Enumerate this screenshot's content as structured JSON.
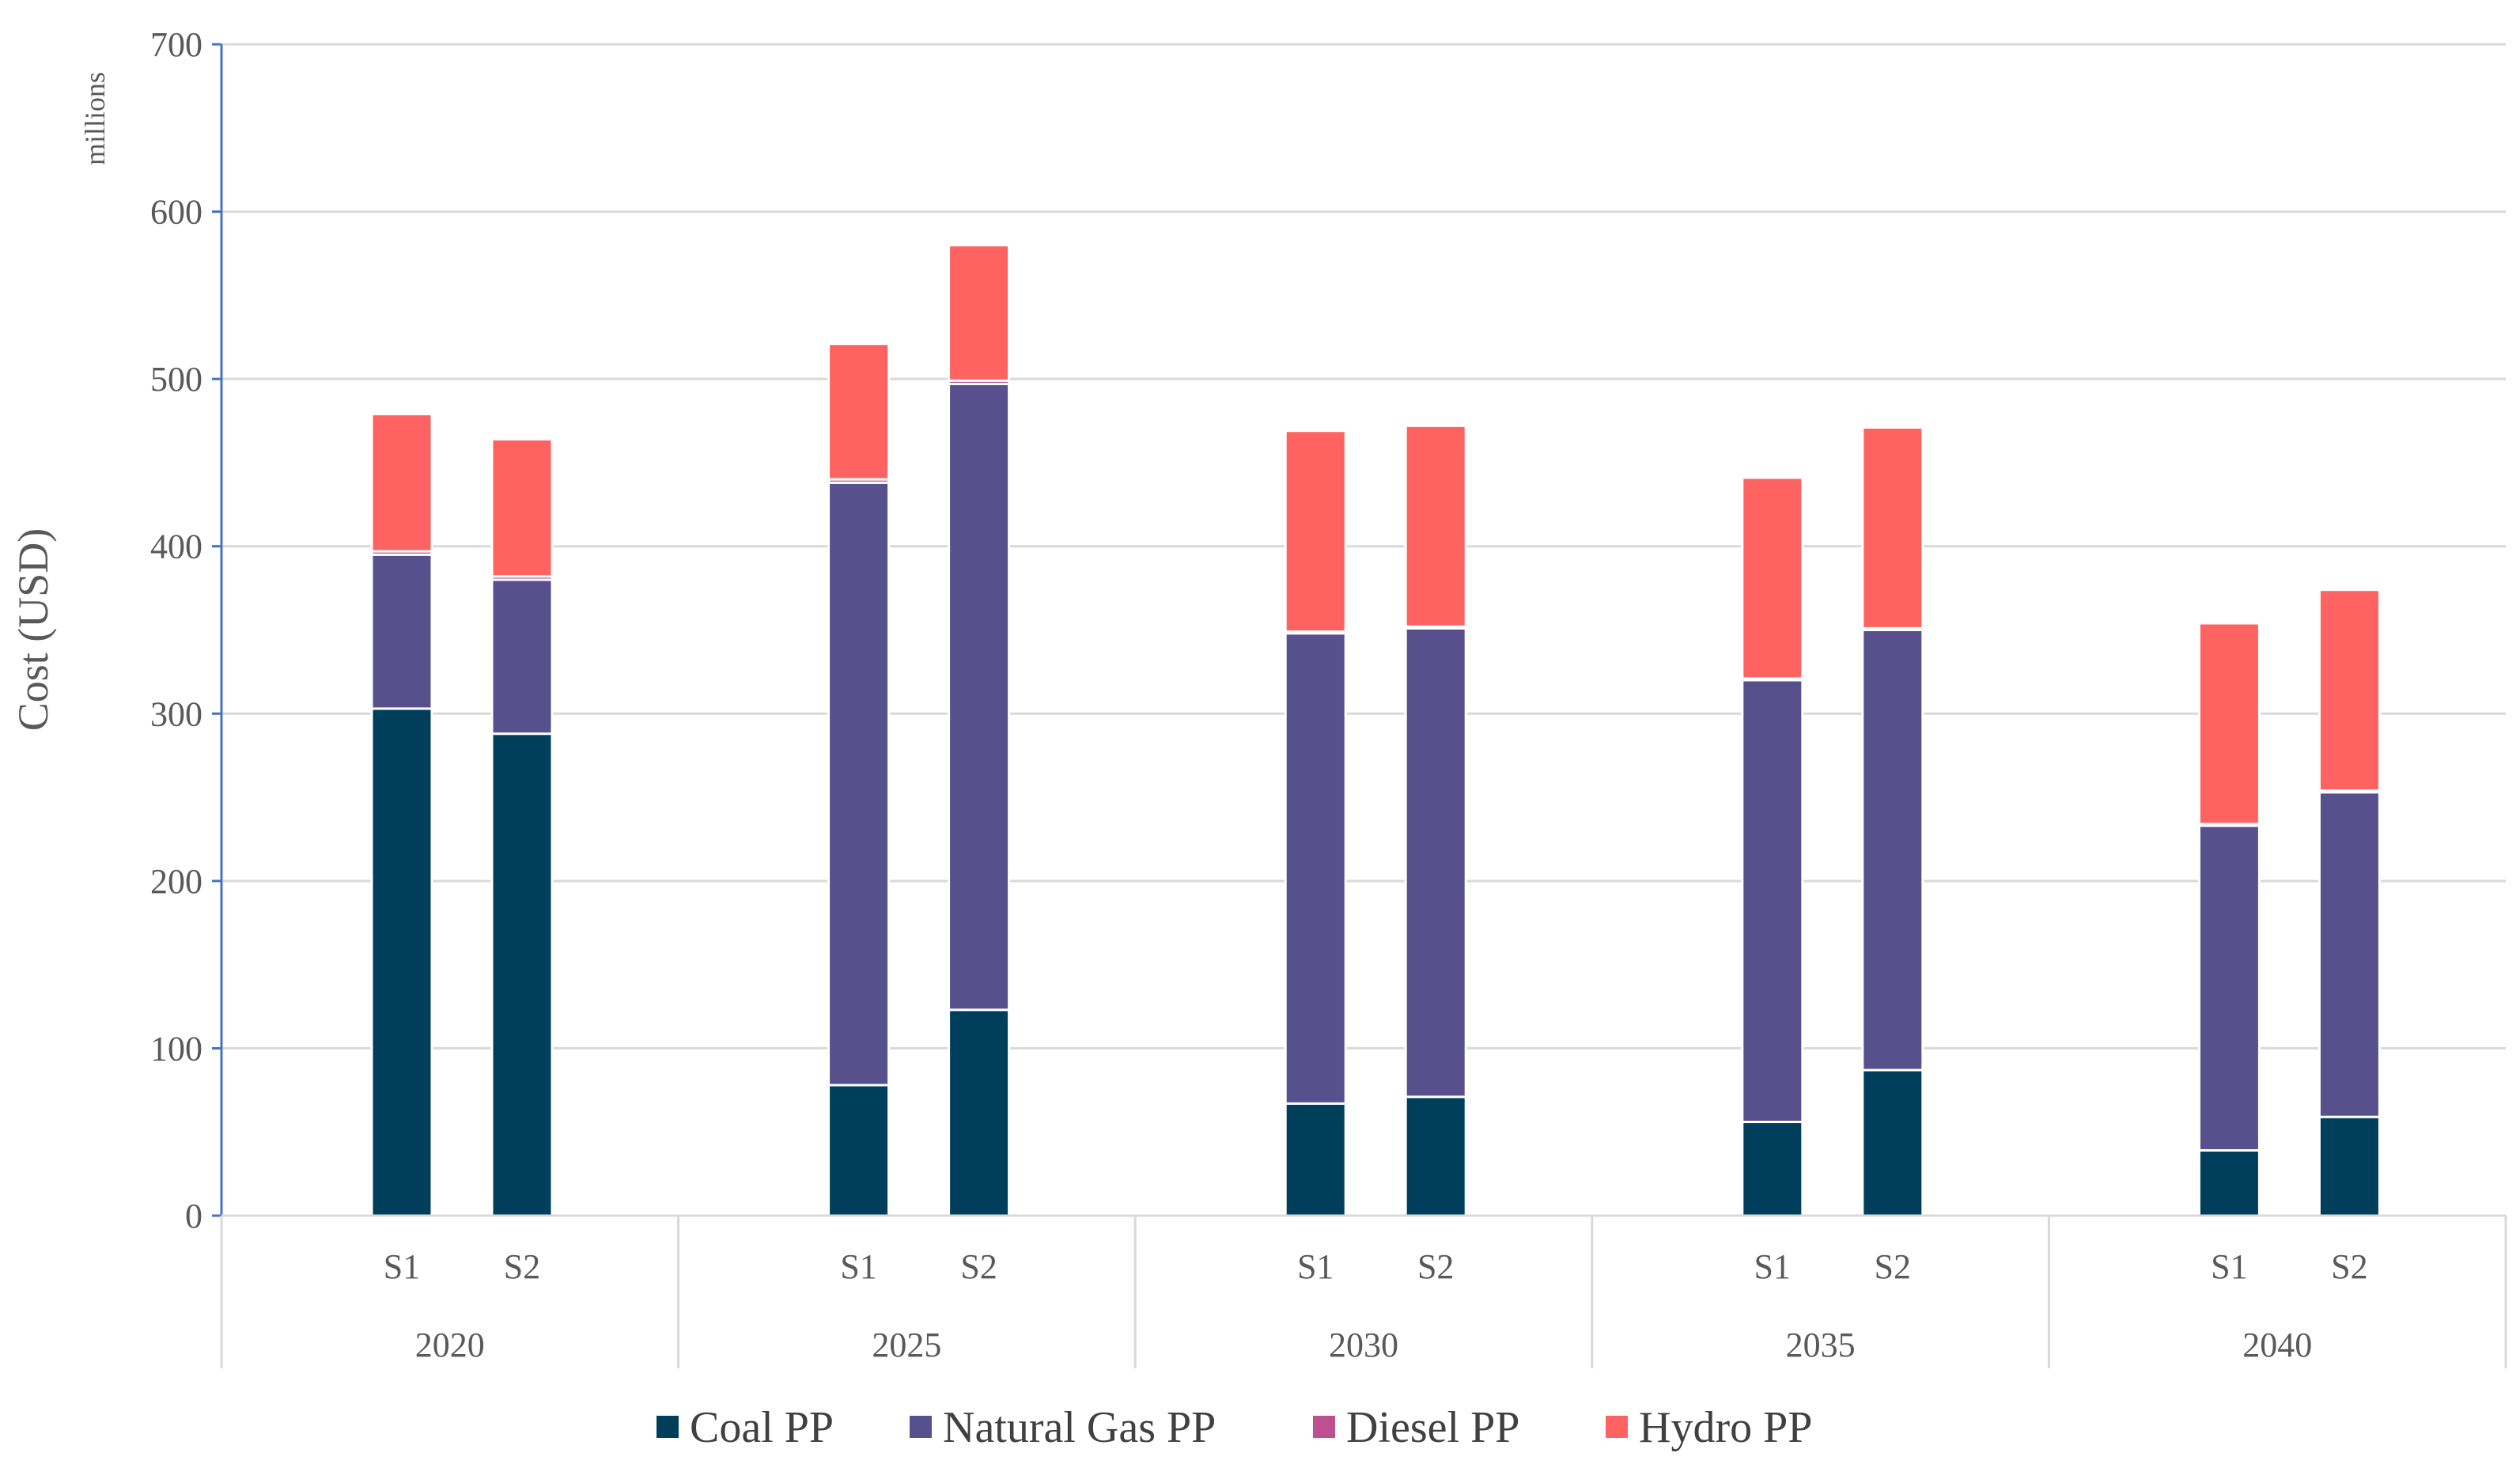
{
  "chart_data": {
    "type": "bar",
    "stacked": true,
    "title": "",
    "ylabel": "Cost (USD)",
    "yunit": "millions",
    "ylim": [
      0,
      700
    ],
    "yticks": [
      0,
      100,
      200,
      300,
      400,
      500,
      600,
      700
    ],
    "groups": [
      "2020",
      "2025",
      "2030",
      "2035",
      "2040"
    ],
    "categories": [
      "S1",
      "S2"
    ],
    "series": [
      {
        "name": "Coal PP",
        "color": "#003F5C",
        "values": [
          [
            303,
            288
          ],
          [
            78,
            123
          ],
          [
            67,
            71
          ],
          [
            56,
            87
          ],
          [
            39,
            59
          ]
        ]
      },
      {
        "name": "Natural Gas PP",
        "color": "#58508D",
        "values": [
          [
            92,
            92
          ],
          [
            360,
            374
          ],
          [
            281,
            280
          ],
          [
            264,
            263
          ],
          [
            194,
            194
          ]
        ]
      },
      {
        "name": "Diesel PP",
        "color": "#BC5090",
        "values": [
          [
            2,
            2
          ],
          [
            2,
            2
          ],
          [
            1,
            1
          ],
          [
            1,
            1
          ],
          [
            1,
            1
          ]
        ]
      },
      {
        "name": "Hydro PP",
        "color": "#FF6361",
        "values": [
          [
            82,
            82
          ],
          [
            81,
            81
          ],
          [
            120,
            120
          ],
          [
            120,
            120
          ],
          [
            120,
            120
          ]
        ]
      }
    ],
    "legend": "bottom",
    "grid": true
  }
}
